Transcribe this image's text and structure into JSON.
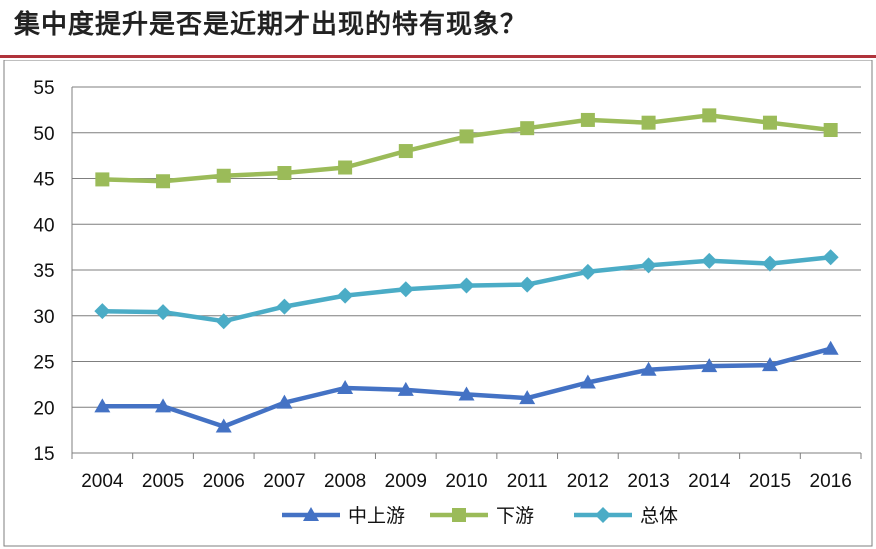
{
  "page": {
    "title": "集中度提升是否是近期才出现的特有现象？"
  },
  "chart_data": {
    "type": "line",
    "title": "",
    "xlabel": "",
    "ylabel": "",
    "ylim": [
      15,
      55
    ],
    "yticks": [
      15,
      20,
      25,
      30,
      35,
      40,
      45,
      50,
      55
    ],
    "grid": true,
    "legend_position": "bottom",
    "categories": [
      "2004",
      "2005",
      "2006",
      "2007",
      "2008",
      "2009",
      "2010",
      "2011",
      "2012",
      "2013",
      "2014",
      "2015",
      "2016"
    ],
    "series": [
      {
        "name": "中上游",
        "color": "#4472c4",
        "marker": "triangle",
        "values": [
          20.1,
          20.1,
          17.9,
          20.5,
          22.1,
          21.9,
          21.4,
          21.0,
          22.7,
          24.1,
          24.5,
          24.6,
          26.4
        ]
      },
      {
        "name": "下游",
        "color": "#9bbb59",
        "marker": "square",
        "values": [
          44.9,
          44.7,
          45.3,
          45.6,
          46.2,
          48.0,
          49.6,
          50.5,
          51.4,
          51.1,
          51.9,
          51.1,
          50.3
        ]
      },
      {
        "name": "总体",
        "color": "#4bacc6",
        "marker": "diamond",
        "values": [
          30.5,
          30.4,
          29.4,
          31.0,
          32.2,
          32.9,
          33.3,
          33.4,
          34.8,
          35.5,
          36.0,
          35.7,
          36.4
        ]
      }
    ]
  }
}
